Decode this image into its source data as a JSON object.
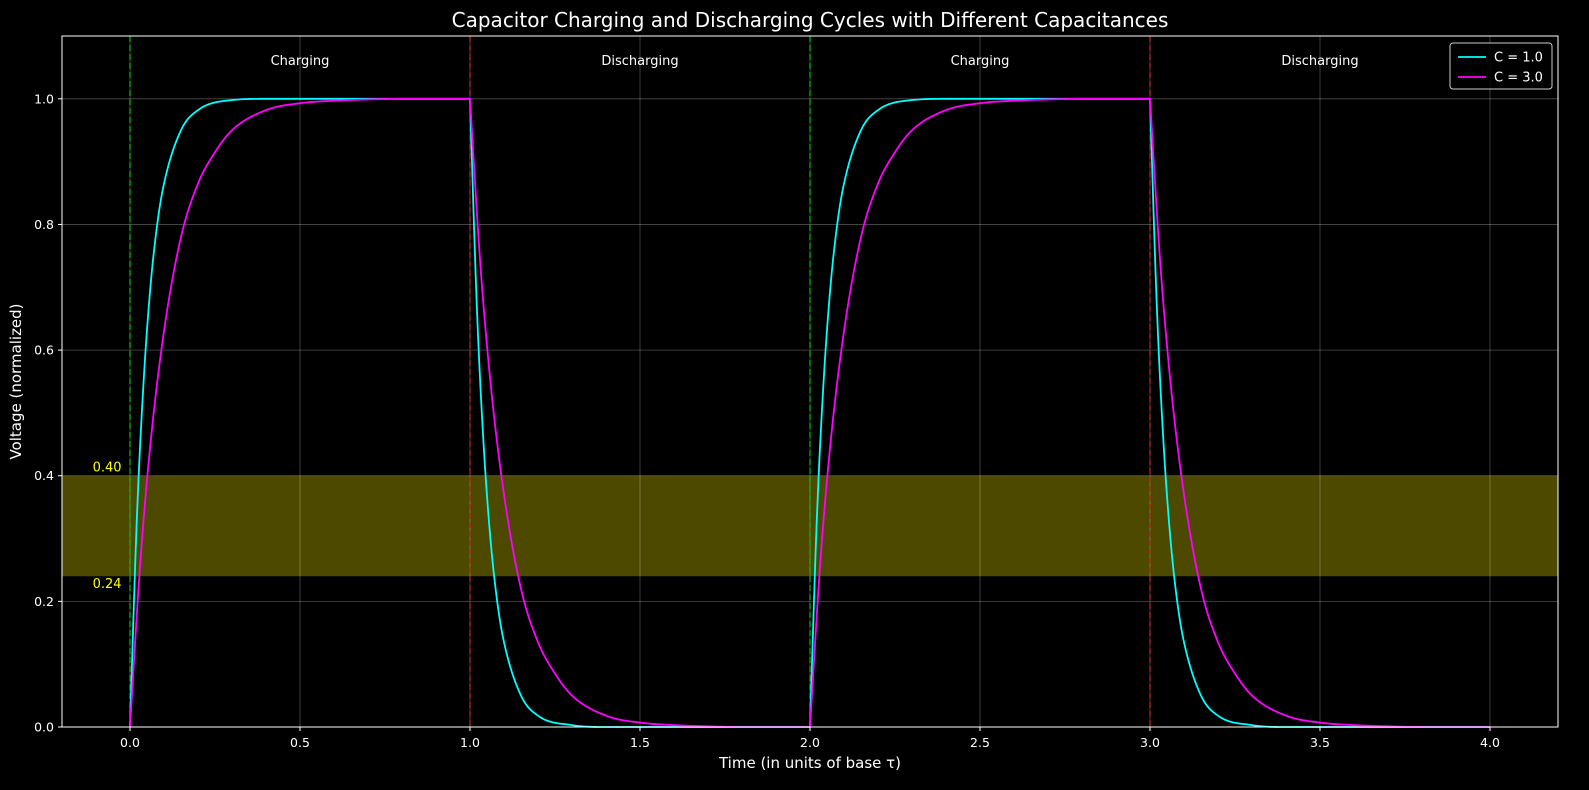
{
  "chart_data": {
    "type": "line",
    "title": "Capacitor Charging and Discharging Cycles with Different Capacitances",
    "xlabel": "Time (in units of base τ)",
    "ylabel": "Voltage (normalized)",
    "xlim": [
      -0.2,
      4.2
    ],
    "ylim": [
      0,
      1.1
    ],
    "x_ticks": [
      0.0,
      0.5,
      1.0,
      1.5,
      2.0,
      2.5,
      3.0,
      3.5,
      4.0
    ],
    "x_tick_labels": [
      "0.0",
      "0.5",
      "1.0",
      "1.5",
      "2.0",
      "2.5",
      "3.0",
      "3.5",
      "4.0"
    ],
    "y_ticks": [
      0.0,
      0.2,
      0.4,
      0.6,
      0.8,
      1.0
    ],
    "y_tick_labels": [
      "0.0",
      "0.2",
      "0.4",
      "0.6",
      "0.8",
      "1.0"
    ],
    "grid": true,
    "legend_position": "top-right",
    "series": [
      {
        "name": "C = 1.0",
        "color": "#00ffff",
        "x": [
          0.0,
          0.02,
          0.04,
          0.06,
          0.08,
          0.1,
          0.15,
          0.2,
          0.3,
          0.4,
          0.6,
          0.8,
          1.0,
          1.02,
          1.04,
          1.06,
          1.08,
          1.1,
          1.15,
          1.2,
          1.3,
          1.4,
          1.6,
          1.8,
          2.0,
          2.02,
          2.04,
          2.06,
          2.08,
          2.1,
          2.15,
          2.2,
          2.3,
          2.4,
          2.6,
          2.8,
          3.0,
          3.02,
          3.04,
          3.06,
          3.08,
          3.1,
          3.15,
          3.2,
          3.3,
          3.4,
          3.6,
          3.8,
          4.0
        ],
        "values": [
          0.0,
          0.33,
          0.55,
          0.7,
          0.8,
          0.865,
          0.95,
          0.982,
          0.998,
          1.0,
          1.0,
          1.0,
          1.0,
          0.67,
          0.45,
          0.3,
          0.2,
          0.135,
          0.05,
          0.018,
          0.003,
          0.0,
          0.0,
          0.0,
          0.0,
          0.33,
          0.55,
          0.7,
          0.8,
          0.865,
          0.95,
          0.982,
          0.998,
          1.0,
          1.0,
          1.0,
          1.0,
          0.67,
          0.45,
          0.3,
          0.2,
          0.135,
          0.05,
          0.018,
          0.003,
          0.0,
          0.0,
          0.0,
          0.0
        ]
      },
      {
        "name": "C = 3.0",
        "color": "#ff00ff",
        "x": [
          0.0,
          0.03,
          0.06,
          0.1,
          0.15,
          0.2,
          0.25,
          0.3,
          0.4,
          0.5,
          0.6,
          0.7,
          0.8,
          0.9,
          1.0,
          1.03,
          1.06,
          1.1,
          1.15,
          1.2,
          1.25,
          1.3,
          1.4,
          1.5,
          1.6,
          1.7,
          1.8,
          1.9,
          2.0,
          2.03,
          2.06,
          2.1,
          2.15,
          2.2,
          2.25,
          2.3,
          2.4,
          2.5,
          2.6,
          2.7,
          2.8,
          2.9,
          3.0,
          3.03,
          3.06,
          3.1,
          3.15,
          3.2,
          3.25,
          3.3,
          3.4,
          3.5,
          3.6,
          3.7,
          3.8,
          3.9,
          4.0
        ],
        "values": [
          0.0,
          0.26,
          0.45,
          0.63,
          0.78,
          0.865,
          0.915,
          0.95,
          0.982,
          0.993,
          0.997,
          0.999,
          1.0,
          1.0,
          1.0,
          0.74,
          0.55,
          0.37,
          0.22,
          0.135,
          0.085,
          0.05,
          0.018,
          0.007,
          0.003,
          0.001,
          0.0,
          0.0,
          0.0,
          0.26,
          0.45,
          0.63,
          0.78,
          0.865,
          0.915,
          0.95,
          0.982,
          0.993,
          0.997,
          0.999,
          1.0,
          1.0,
          1.0,
          0.74,
          0.55,
          0.37,
          0.22,
          0.135,
          0.085,
          0.05,
          0.018,
          0.007,
          0.003,
          0.001,
          0.0,
          0.0,
          0.0
        ]
      }
    ],
    "highlight_band": {
      "y_min": 0.24,
      "y_max": 0.4,
      "color": "#4d4a00",
      "lower_label": "0.24",
      "upper_label": "0.40",
      "label_color": "#ffff00"
    },
    "vertical_markers": [
      {
        "x": 0.0,
        "color": "#00cc00",
        "kind": "charge-start"
      },
      {
        "x": 1.0,
        "color": "#cc2222",
        "kind": "discharge-start"
      },
      {
        "x": 2.0,
        "color": "#00cc00",
        "kind": "charge-start"
      },
      {
        "x": 3.0,
        "color": "#cc2222",
        "kind": "discharge-start"
      }
    ],
    "phase_annotations": [
      {
        "x": 0.5,
        "y": 1.06,
        "text": "Charging"
      },
      {
        "x": 1.5,
        "y": 1.06,
        "text": "Discharging"
      },
      {
        "x": 2.5,
        "y": 1.06,
        "text": "Charging"
      },
      {
        "x": 3.5,
        "y": 1.06,
        "text": "Discharging"
      }
    ]
  }
}
